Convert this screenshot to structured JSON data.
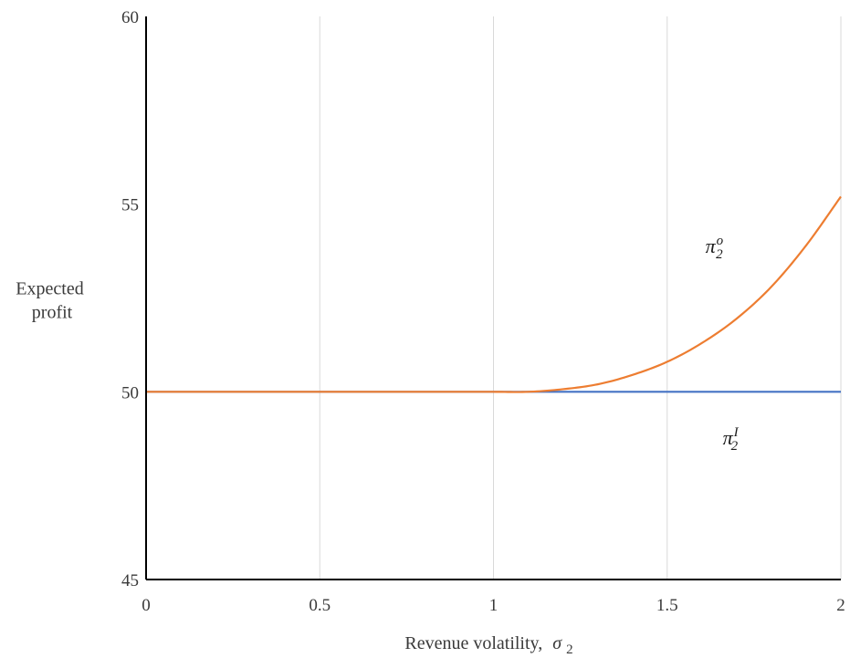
{
  "chart_data": {
    "type": "line",
    "title": "",
    "xlabel": "Revenue volatility,",
    "xlabel_symbol": "σ",
    "xlabel_symbol_sub": "2",
    "ylabel_lines": [
      "Expected",
      "profit"
    ],
    "xlim": [
      0,
      2
    ],
    "ylim": [
      45,
      60
    ],
    "xticks": [
      0,
      0.5,
      1,
      1.5,
      2
    ],
    "xtick_labels": [
      "0",
      "0.5",
      "1",
      "1.5",
      "2"
    ],
    "yticks": [
      45,
      50,
      55,
      60
    ],
    "ytick_labels": [
      "45",
      "50",
      "55",
      "60"
    ],
    "grid": "vertical",
    "legend": "none",
    "series": [
      {
        "label_base": "π",
        "label_sub": "2",
        "label_sup": "o",
        "label_at": [
          1.61,
          53.7
        ],
        "color": "#ED7D31",
        "x": [
          0,
          0.5,
          1.0,
          1.1,
          1.2,
          1.3,
          1.4,
          1.5,
          1.6,
          1.7,
          1.8,
          1.9,
          2.0
        ],
        "values": [
          50,
          50,
          50,
          50.0,
          50.07,
          50.2,
          50.45,
          50.8,
          51.3,
          51.95,
          52.8,
          53.9,
          55.2
        ]
      },
      {
        "label_base": "π",
        "label_sub": "2",
        "label_sup": "I",
        "label_at": [
          1.66,
          48.6
        ],
        "color": "#4472C4",
        "x": [
          0,
          2.0
        ],
        "values": [
          50,
          50
        ]
      }
    ]
  }
}
